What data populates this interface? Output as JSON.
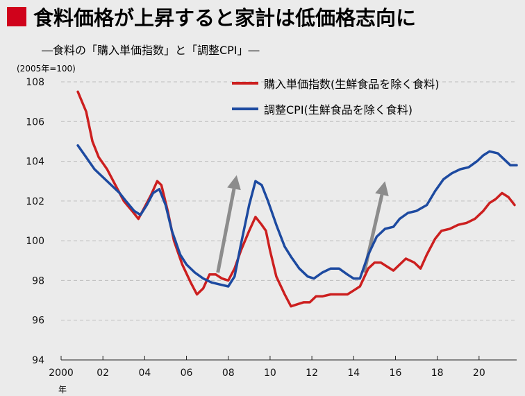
{
  "colors": {
    "background": "#ebebeb",
    "accent_square": "#d0021b",
    "series_red": "#cc1f1f",
    "series_blue": "#1d4aa0",
    "arrow": "#8c8c8c",
    "grid": "#bdbdbd"
  },
  "chart_data": {
    "type": "line",
    "title": "食料価格が上昇すると家計は低価格志向に",
    "subtitle": "―食料の「購入単価指数」と「調整CPI」―",
    "ylabel": "(2005年=100)",
    "xlabel": "",
    "x_unit_label": "年",
    "ylim": [
      94,
      108
    ],
    "yticks": [
      94,
      96,
      98,
      100,
      102,
      104,
      106,
      108
    ],
    "xlim": [
      2000,
      2021.8
    ],
    "xticks": [
      2000,
      2002,
      2004,
      2006,
      2008,
      2010,
      2012,
      2014,
      2016,
      2018,
      2020
    ],
    "xtick_labels": [
      "2000",
      "02",
      "04",
      "06",
      "08",
      "10",
      "12",
      "14",
      "16",
      "18",
      "20"
    ],
    "grid": "horizontal dashed",
    "legend_placement": "top-right",
    "series": [
      {
        "name": "購入単価指数(生鮮食品を除く食料)",
        "color": "#cc1f1f",
        "points": [
          [
            2000.8,
            107.5
          ],
          [
            2001.2,
            106.5
          ],
          [
            2001.5,
            105.0
          ],
          [
            2001.8,
            104.2
          ],
          [
            2002.2,
            103.6
          ],
          [
            2002.6,
            102.8
          ],
          [
            2003.0,
            102.0
          ],
          [
            2003.4,
            101.5
          ],
          [
            2003.7,
            101.1
          ],
          [
            2004.0,
            101.7
          ],
          [
            2004.3,
            102.3
          ],
          [
            2004.6,
            103.0
          ],
          [
            2004.8,
            102.8
          ],
          [
            2005.1,
            101.5
          ],
          [
            2005.4,
            100.0
          ],
          [
            2005.8,
            98.8
          ],
          [
            2006.2,
            97.9
          ],
          [
            2006.5,
            97.3
          ],
          [
            2006.8,
            97.6
          ],
          [
            2007.1,
            98.3
          ],
          [
            2007.4,
            98.3
          ],
          [
            2007.7,
            98.1
          ],
          [
            2008.0,
            98.0
          ],
          [
            2008.3,
            98.6
          ],
          [
            2008.6,
            99.5
          ],
          [
            2009.0,
            100.5
          ],
          [
            2009.3,
            101.2
          ],
          [
            2009.6,
            100.8
          ],
          [
            2009.8,
            100.5
          ],
          [
            2010.0,
            99.5
          ],
          [
            2010.3,
            98.2
          ],
          [
            2010.7,
            97.3
          ],
          [
            2011.0,
            96.7
          ],
          [
            2011.3,
            96.8
          ],
          [
            2011.6,
            96.9
          ],
          [
            2011.9,
            96.9
          ],
          [
            2012.2,
            97.2
          ],
          [
            2012.5,
            97.2
          ],
          [
            2012.9,
            97.3
          ],
          [
            2013.3,
            97.3
          ],
          [
            2013.7,
            97.3
          ],
          [
            2014.0,
            97.5
          ],
          [
            2014.3,
            97.7
          ],
          [
            2014.7,
            98.6
          ],
          [
            2015.0,
            98.9
          ],
          [
            2015.3,
            98.9
          ],
          [
            2015.6,
            98.7
          ],
          [
            2015.9,
            98.5
          ],
          [
            2016.2,
            98.8
          ],
          [
            2016.5,
            99.1
          ],
          [
            2016.9,
            98.9
          ],
          [
            2017.2,
            98.6
          ],
          [
            2017.5,
            99.3
          ],
          [
            2017.9,
            100.1
          ],
          [
            2018.2,
            100.5
          ],
          [
            2018.6,
            100.6
          ],
          [
            2019.0,
            100.8
          ],
          [
            2019.4,
            100.9
          ],
          [
            2019.8,
            101.1
          ],
          [
            2020.2,
            101.5
          ],
          [
            2020.5,
            101.9
          ],
          [
            2020.8,
            102.1
          ],
          [
            2021.1,
            102.4
          ],
          [
            2021.4,
            102.2
          ],
          [
            2021.7,
            101.8
          ]
        ]
      },
      {
        "name": "調整CPI(生鮮食品を除く食料)",
        "color": "#1d4aa0",
        "points": [
          [
            2000.8,
            104.8
          ],
          [
            2001.2,
            104.2
          ],
          [
            2001.6,
            103.6
          ],
          [
            2002.0,
            103.2
          ],
          [
            2002.4,
            102.8
          ],
          [
            2002.8,
            102.4
          ],
          [
            2003.1,
            102.0
          ],
          [
            2003.5,
            101.5
          ],
          [
            2003.8,
            101.3
          ],
          [
            2004.1,
            101.8
          ],
          [
            2004.4,
            102.4
          ],
          [
            2004.7,
            102.6
          ],
          [
            2005.0,
            101.8
          ],
          [
            2005.3,
            100.5
          ],
          [
            2005.7,
            99.3
          ],
          [
            2006.0,
            98.8
          ],
          [
            2006.4,
            98.4
          ],
          [
            2006.8,
            98.1
          ],
          [
            2007.2,
            97.9
          ],
          [
            2007.6,
            97.8
          ],
          [
            2008.0,
            97.7
          ],
          [
            2008.3,
            98.2
          ],
          [
            2008.6,
            99.8
          ],
          [
            2009.0,
            101.8
          ],
          [
            2009.3,
            103.0
          ],
          [
            2009.6,
            102.8
          ],
          [
            2009.9,
            102.0
          ],
          [
            2010.3,
            100.8
          ],
          [
            2010.7,
            99.7
          ],
          [
            2011.0,
            99.2
          ],
          [
            2011.4,
            98.6
          ],
          [
            2011.8,
            98.2
          ],
          [
            2012.1,
            98.1
          ],
          [
            2012.5,
            98.4
          ],
          [
            2012.9,
            98.6
          ],
          [
            2013.3,
            98.6
          ],
          [
            2013.7,
            98.3
          ],
          [
            2014.0,
            98.1
          ],
          [
            2014.3,
            98.1
          ],
          [
            2014.7,
            99.3
          ],
          [
            2015.1,
            100.2
          ],
          [
            2015.5,
            100.6
          ],
          [
            2015.9,
            100.7
          ],
          [
            2016.2,
            101.1
          ],
          [
            2016.6,
            101.4
          ],
          [
            2017.0,
            101.5
          ],
          [
            2017.5,
            101.8
          ],
          [
            2017.9,
            102.5
          ],
          [
            2018.3,
            103.1
          ],
          [
            2018.7,
            103.4
          ],
          [
            2019.1,
            103.6
          ],
          [
            2019.5,
            103.7
          ],
          [
            2019.9,
            104.0
          ],
          [
            2020.2,
            104.3
          ],
          [
            2020.5,
            104.5
          ],
          [
            2020.9,
            104.4
          ],
          [
            2021.2,
            104.1
          ],
          [
            2021.5,
            103.8
          ],
          [
            2021.8,
            103.8
          ]
        ]
      }
    ],
    "annotations": [
      {
        "type": "arrow",
        "from": [
          2007.5,
          98.4
        ],
        "to": [
          2008.4,
          103.3
        ]
      },
      {
        "type": "arrow",
        "from": [
          2014.5,
          98.4
        ],
        "to": [
          2015.5,
          103.0
        ]
      }
    ]
  }
}
